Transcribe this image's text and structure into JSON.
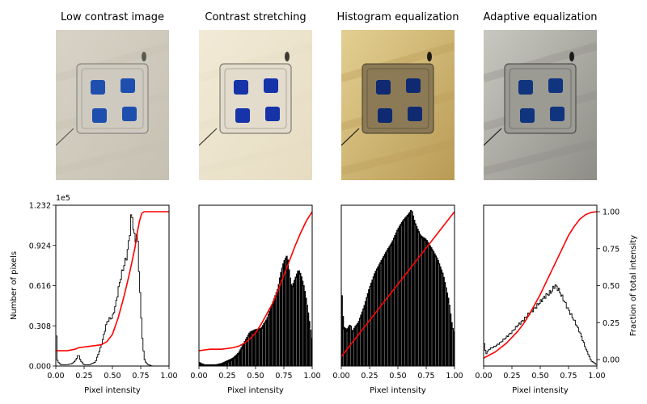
{
  "panels": [
    {
      "title": "Low contrast image",
      "photo": {
        "bg1": "#d8d3c6",
        "bg2": "#c5c0b2",
        "glass": "#cfcac0",
        "blue": "#1f4fae",
        "dark": "#5a5a55"
      }
    },
    {
      "title": "Contrast stretching",
      "photo": {
        "bg1": "#f2ead6",
        "bg2": "#e6dcc2",
        "glass": "#e3dccd",
        "blue": "#1733a8",
        "dark": "#3d3a33"
      }
    },
    {
      "title": "Histogram equalization",
      "photo": {
        "bg1": "#e3cf92",
        "bg2": "#b99b55",
        "glass": "#8b7a55",
        "blue": "#102a72",
        "dark": "#1e1a14"
      }
    },
    {
      "title": "Adaptive equalization",
      "photo": {
        "bg1": "#c9c8c0",
        "bg2": "#8e8d86",
        "glass": "#9b9a93",
        "blue": "#10347e",
        "dark": "#1b1b1b"
      }
    }
  ],
  "chart_data": [
    {
      "type": "area",
      "title": "Low contrast image",
      "xlabel": "Pixel intensity",
      "ylabel": "Number of pixels",
      "y_scale_label": "1e5",
      "xlim": [
        0,
        1
      ],
      "ylim": [
        0,
        1.232
      ],
      "xticks": [
        "0.00",
        "0.25",
        "0.50",
        "0.75",
        "1.00"
      ],
      "yticks": [
        "0.000",
        "0.308",
        "0.616",
        "0.924",
        "1.232"
      ],
      "histogram": {
        "x": [
          0.0,
          0.01,
          0.03,
          0.05,
          0.08,
          0.1,
          0.15,
          0.18,
          0.2,
          0.22,
          0.25,
          0.3,
          0.35,
          0.4,
          0.42,
          0.45,
          0.47,
          0.5,
          0.53,
          0.56,
          0.58,
          0.6,
          0.63,
          0.65,
          0.67,
          0.7,
          0.72,
          0.74,
          0.76,
          0.78,
          0.8,
          0.82,
          0.85,
          0.9,
          0.95,
          1.0
        ],
        "y": [
          0.41,
          0.05,
          0.02,
          0.01,
          0.01,
          0.01,
          0.02,
          0.05,
          0.09,
          0.04,
          0.01,
          0.01,
          0.03,
          0.15,
          0.22,
          0.33,
          0.36,
          0.37,
          0.47,
          0.62,
          0.7,
          0.76,
          0.85,
          0.98,
          1.18,
          0.95,
          1.03,
          0.65,
          0.27,
          0.06,
          0.02,
          0.01,
          0.0,
          0.0,
          0.0,
          0.0
        ]
      },
      "cdf": {
        "x": [
          0.0,
          0.1,
          0.17,
          0.2,
          0.3,
          0.4,
          0.45,
          0.5,
          0.55,
          0.6,
          0.65,
          0.7,
          0.72,
          0.74,
          0.76,
          0.78,
          1.0
        ],
        "y": [
          0.06,
          0.06,
          0.07,
          0.08,
          0.09,
          0.1,
          0.12,
          0.17,
          0.28,
          0.42,
          0.58,
          0.76,
          0.86,
          0.94,
          0.99,
          1.0,
          1.0
        ]
      }
    },
    {
      "type": "area",
      "title": "Contrast stretching",
      "xlabel": "Pixel intensity",
      "xlim": [
        0,
        1
      ],
      "ylim": [
        0,
        1.232
      ],
      "xticks": [
        "0.00",
        "0.25",
        "0.50",
        "0.75",
        "1.00"
      ],
      "histogram": {
        "x": [
          0.0,
          0.02,
          0.05,
          0.1,
          0.15,
          0.2,
          0.25,
          0.3,
          0.35,
          0.4,
          0.45,
          0.5,
          0.55,
          0.6,
          0.65,
          0.7,
          0.72,
          0.75,
          0.78,
          0.8,
          0.82,
          0.85,
          0.88,
          0.9,
          0.93,
          0.96,
          1.0
        ],
        "y": [
          0.03,
          0.02,
          0.01,
          0.01,
          0.01,
          0.02,
          0.04,
          0.06,
          0.1,
          0.18,
          0.26,
          0.28,
          0.29,
          0.36,
          0.48,
          0.6,
          0.7,
          0.8,
          0.85,
          0.7,
          0.6,
          0.67,
          0.74,
          0.7,
          0.6,
          0.44,
          0.18
        ]
      },
      "cdf": {
        "x": [
          0.0,
          0.1,
          0.2,
          0.3,
          0.35,
          0.4,
          0.45,
          0.5,
          0.55,
          0.6,
          0.65,
          0.7,
          0.75,
          0.8,
          0.85,
          0.9,
          0.95,
          1.0
        ],
        "y": [
          0.06,
          0.07,
          0.07,
          0.08,
          0.09,
          0.11,
          0.14,
          0.18,
          0.24,
          0.31,
          0.38,
          0.47,
          0.57,
          0.67,
          0.77,
          0.86,
          0.94,
          1.0
        ]
      }
    },
    {
      "type": "area",
      "title": "Histogram equalization",
      "xlabel": "Pixel intensity",
      "xlim": [
        0,
        1
      ],
      "ylim": [
        0,
        1.232
      ],
      "xticks": [
        "0.00",
        "0.25",
        "0.50",
        "0.75",
        "1.00"
      ],
      "histogram": {
        "x": [
          0.0,
          0.02,
          0.05,
          0.08,
          0.1,
          0.12,
          0.15,
          0.2,
          0.25,
          0.3,
          0.35,
          0.4,
          0.45,
          0.5,
          0.55,
          0.6,
          0.62,
          0.65,
          0.7,
          0.75,
          0.8,
          0.85,
          0.9,
          0.95,
          0.98,
          1.0
        ],
        "y": [
          0.62,
          0.3,
          0.28,
          0.32,
          0.26,
          0.3,
          0.33,
          0.45,
          0.6,
          0.72,
          0.8,
          0.88,
          0.95,
          1.05,
          1.12,
          1.17,
          1.2,
          1.1,
          1.0,
          0.97,
          0.9,
          0.82,
          0.7,
          0.5,
          0.3,
          0.25
        ]
      },
      "cdf": {
        "x": [
          0.0,
          1.0
        ],
        "y": [
          0.02,
          1.0
        ]
      }
    },
    {
      "type": "area",
      "title": "Adaptive equalization",
      "xlabel": "Pixel intensity",
      "ylabel2": "Fraction of total intensity",
      "xlim": [
        0,
        1
      ],
      "ylim2": [
        -0.05,
        1.05
      ],
      "xticks": [
        "0.00",
        "0.25",
        "0.50",
        "0.75",
        "1.00"
      ],
      "y2ticks": [
        "0.00",
        "0.25",
        "0.50",
        "0.75",
        "1.00"
      ],
      "histogram": {
        "x": [
          0.0,
          0.02,
          0.05,
          0.1,
          0.15,
          0.2,
          0.25,
          0.3,
          0.35,
          0.4,
          0.45,
          0.5,
          0.55,
          0.6,
          0.63,
          0.66,
          0.7,
          0.75,
          0.8,
          0.85,
          0.9,
          0.95,
          1.0
        ],
        "y": [
          0.2,
          0.09,
          0.13,
          0.15,
          0.18,
          0.22,
          0.26,
          0.31,
          0.35,
          0.4,
          0.44,
          0.49,
          0.54,
          0.57,
          0.62,
          0.59,
          0.52,
          0.43,
          0.35,
          0.26,
          0.14,
          0.04,
          0.01
        ]
      },
      "cdf": {
        "x": [
          0.0,
          0.05,
          0.1,
          0.15,
          0.2,
          0.25,
          0.3,
          0.35,
          0.4,
          0.45,
          0.5,
          0.55,
          0.6,
          0.65,
          0.7,
          0.75,
          0.8,
          0.85,
          0.9,
          0.95,
          1.0
        ],
        "y": [
          0.01,
          0.03,
          0.05,
          0.08,
          0.11,
          0.15,
          0.19,
          0.24,
          0.3,
          0.37,
          0.44,
          0.52,
          0.6,
          0.68,
          0.76,
          0.84,
          0.9,
          0.95,
          0.98,
          0.995,
          1.0
        ]
      }
    }
  ]
}
